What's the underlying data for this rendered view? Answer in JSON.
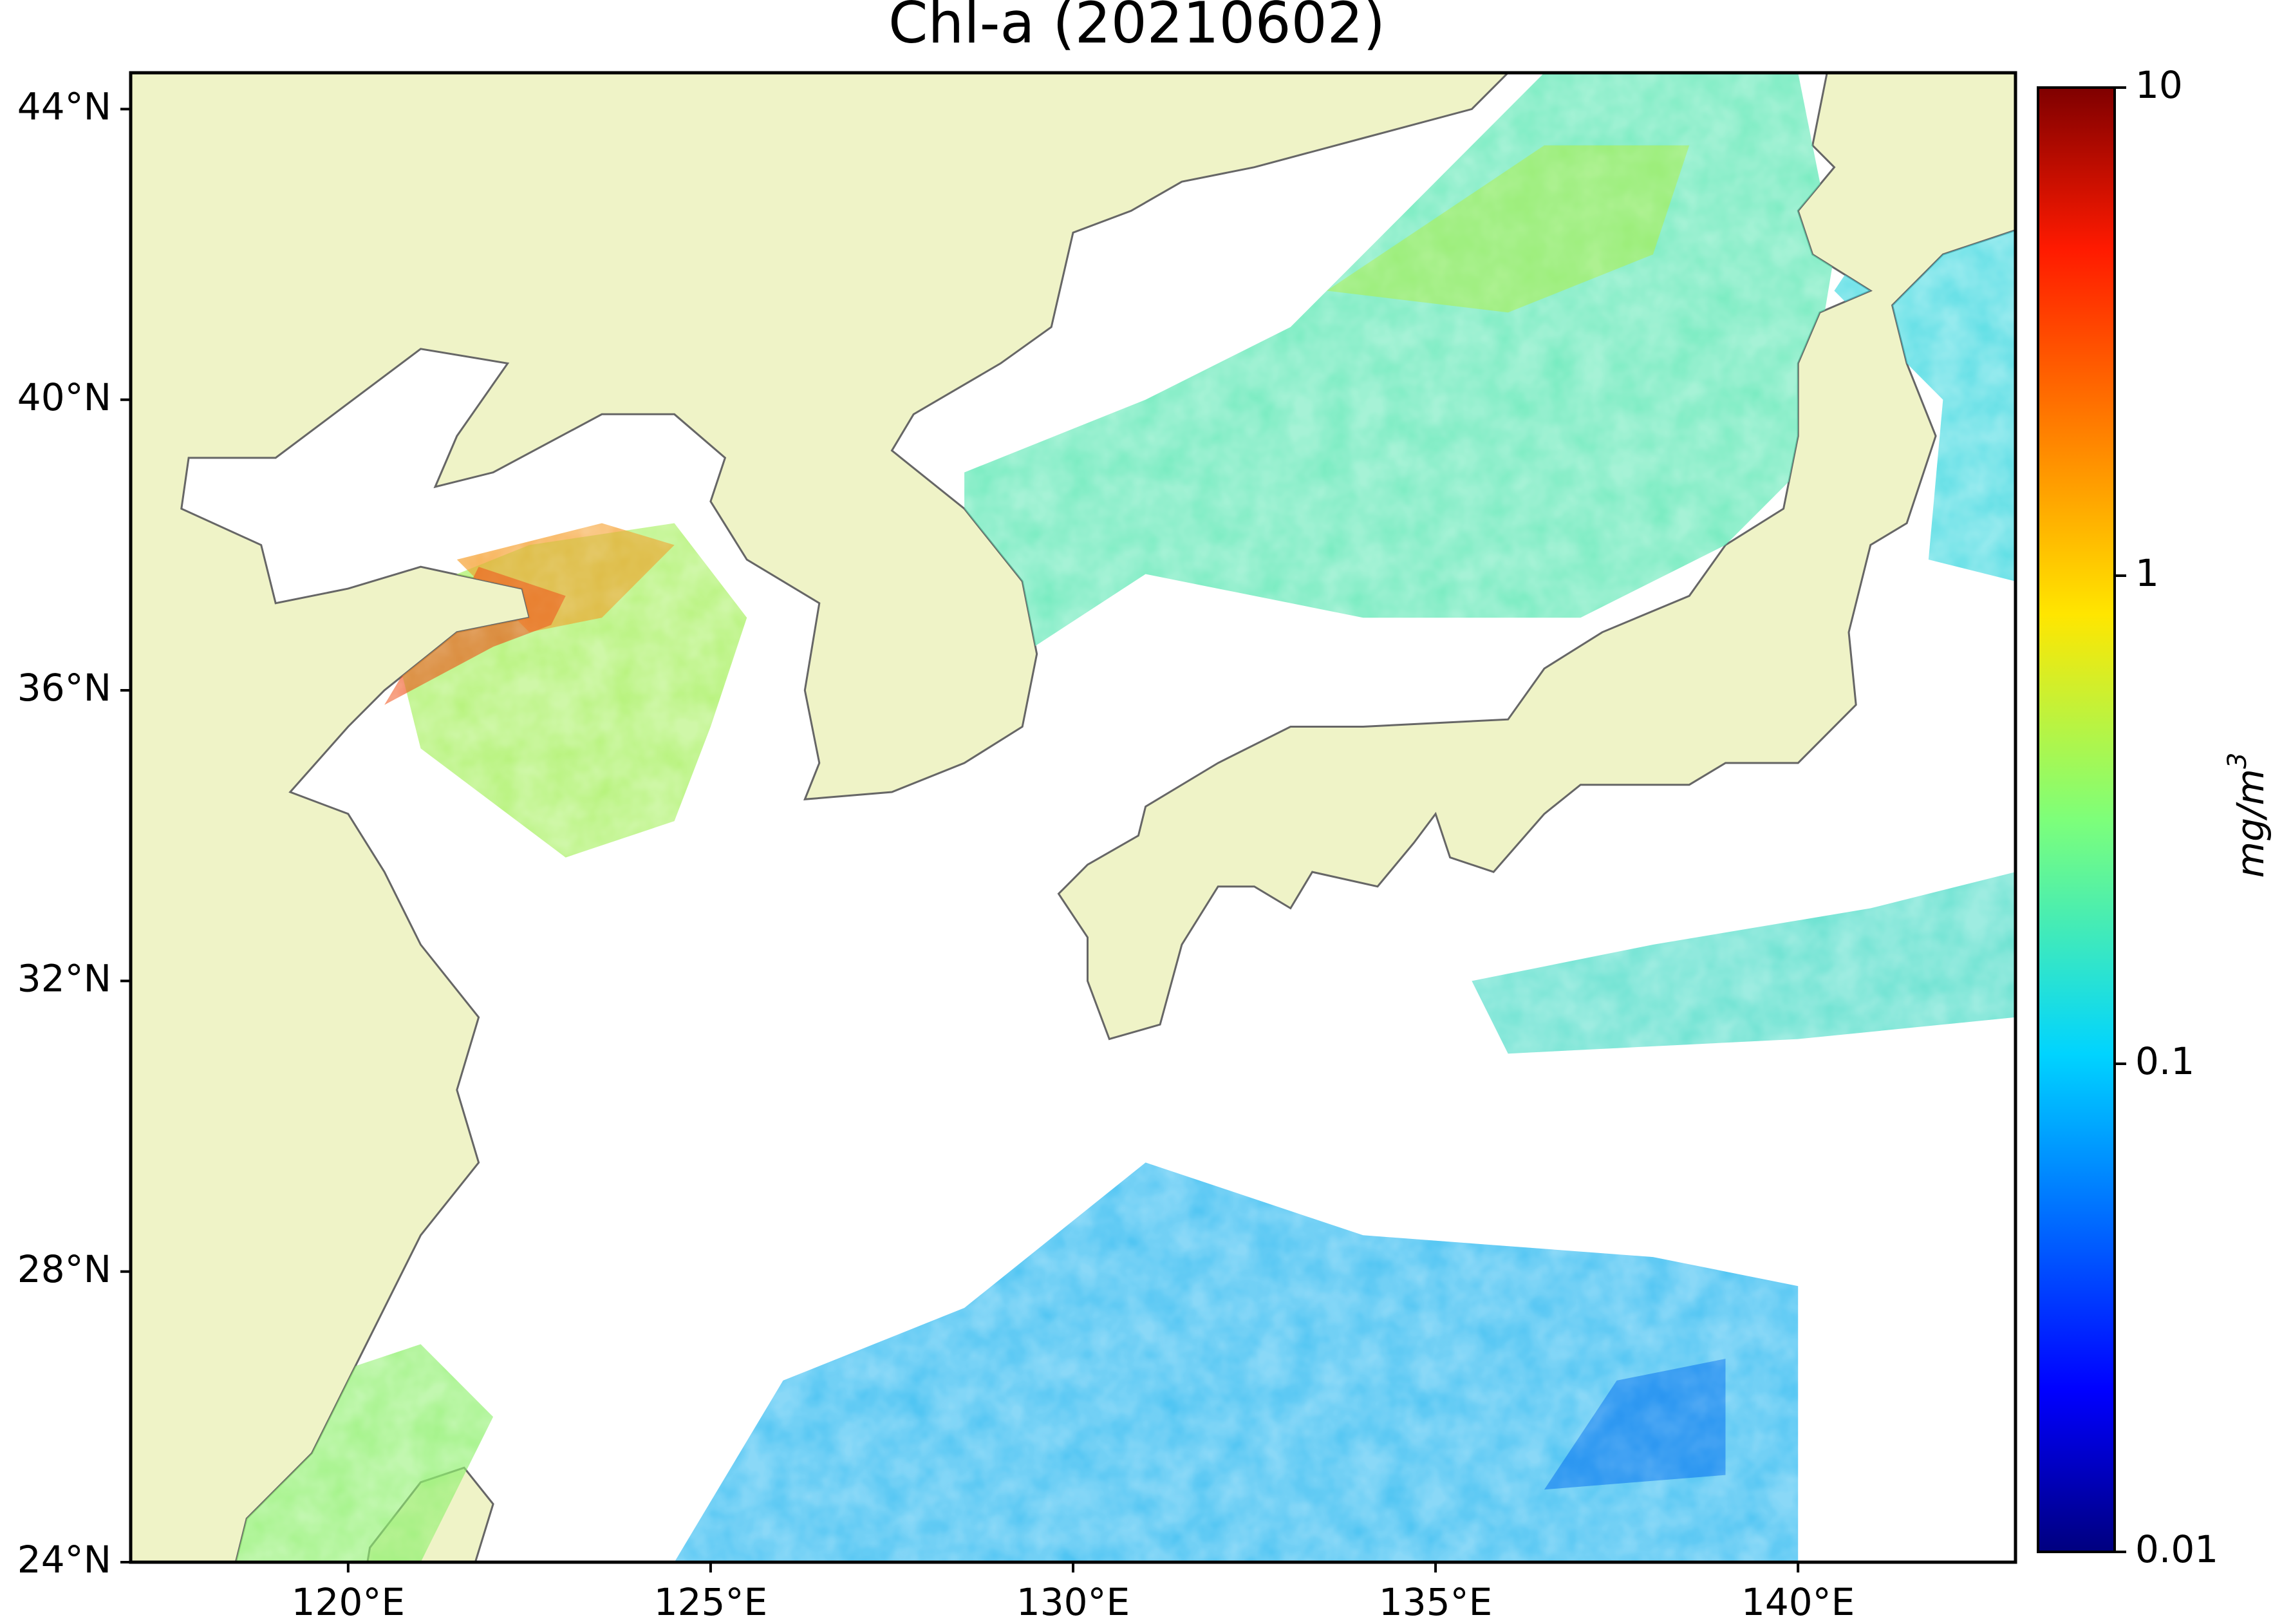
{
  "chart_data": {
    "type": "map",
    "title": "Chl-a (20210602)",
    "xlim": [
      117,
      143
    ],
    "ylim": [
      24,
      44.5
    ],
    "xticks": [
      {
        "value": 120,
        "label": "120°E"
      },
      {
        "value": 125,
        "label": "125°E"
      },
      {
        "value": 130,
        "label": "130°E"
      },
      {
        "value": 135,
        "label": "135°E"
      },
      {
        "value": 140,
        "label": "140°E"
      }
    ],
    "yticks": [
      {
        "value": 24,
        "label": "24°N"
      },
      {
        "value": 28,
        "label": "28°N"
      },
      {
        "value": 32,
        "label": "32°N"
      },
      {
        "value": 36,
        "label": "36°N"
      },
      {
        "value": 40,
        "label": "40°N"
      },
      {
        "value": 44,
        "label": "44°N"
      }
    ],
    "colorbar": {
      "lim": [
        0.01,
        10
      ],
      "ticks": [
        0.01,
        0.1,
        1,
        10
      ],
      "log_scale": true,
      "colormap": "jet",
      "label": {
        "base": "mg/m",
        "sup": "3"
      }
    }
  }
}
